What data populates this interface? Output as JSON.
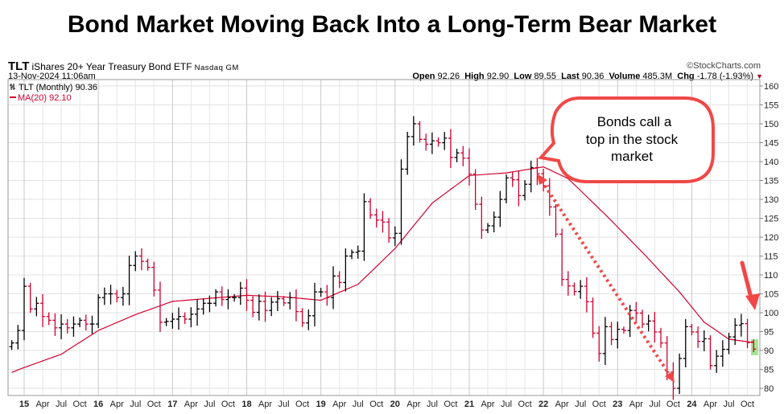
{
  "title": "Bond Market Moving Back Into a Long-Term Bear Market",
  "header": {
    "symbol": "TLT",
    "name": "iShares 20+ Year Treasury Bond ETF",
    "exchange": "Nasdaq GM",
    "date": "13-Nov-2024 11:06am",
    "copyright": "©StockCharts.com",
    "open_label": "Open",
    "open": "92.26",
    "high_label": "High",
    "high": "92.90",
    "low_label": "Low",
    "low": "89.55",
    "last_label": "Last",
    "last": "90.36",
    "volume_label": "Volume",
    "volume": "485.3M",
    "chg_label": "Chg",
    "chg": "-1.78 (-1.93%)"
  },
  "legend": {
    "price": "TLT (Monthly) 90.36",
    "ma": "MA(20) 92.10"
  },
  "annotation": {
    "lines": [
      "Bonds call a",
      "top in the stock",
      "market"
    ]
  },
  "colors": {
    "up": "#000000",
    "down": "#d0002e",
    "ma": "#d0002e",
    "annotation": "#f04848",
    "highlight": "#8fe07a"
  },
  "chart_data": {
    "type": "bar",
    "subtype": "ohlc",
    "frequency": "monthly",
    "start": "2014-11",
    "closes": [
      92,
      95.3,
      107,
      101,
      102.5,
      99,
      98,
      96,
      97,
      96,
      97,
      98,
      97,
      97,
      104,
      105,
      105,
      104,
      105,
      112.5,
      115,
      113.6,
      112,
      106,
      97.5,
      97.7,
      98.3,
      99,
      98.3,
      99.6,
      101,
      102.5,
      102.5,
      105.5,
      103.5,
      104,
      104,
      106.5,
      103.3,
      100.1,
      103,
      100.6,
      102.8,
      103.7,
      102.6,
      104,
      100.3,
      97.3,
      99.2,
      105.5,
      105.5,
      104,
      109.7,
      108,
      115,
      116,
      116.3,
      129.4,
      125.9,
      124.5,
      124,
      119.8,
      121,
      138,
      146.6,
      150,
      145.9,
      144.6,
      145.5,
      145,
      146.2,
      141.1,
      142.3,
      140.9,
      136.7,
      128.7,
      121.9,
      123,
      125.3,
      130,
      135.7,
      135.2,
      131,
      134,
      138.4,
      136.8,
      133.6,
      128,
      120.8,
      108.8,
      107.1,
      105.6,
      107,
      102.9,
      94.6,
      89.2,
      96.3,
      92.9,
      95.6,
      95.3,
      100.6,
      99.9,
      97,
      97.8,
      94.9,
      92,
      84.3,
      80,
      87.9,
      96.3,
      94.9,
      92.4,
      93.1,
      86,
      88.5,
      90.3,
      93.6,
      96.7,
      97.1,
      92.1,
      90.36
    ],
    "last_bar": {
      "open": 92.26,
      "high": 92.9,
      "low": 89.55,
      "close": 90.36
    },
    "ma20_anchors": [
      [
        0,
        84.2
      ],
      [
        2,
        85.5
      ],
      [
        8,
        89
      ],
      [
        14,
        95.3
      ],
      [
        20,
        99.5
      ],
      [
        26,
        103
      ],
      [
        32,
        103.8
      ],
      [
        38,
        104.6
      ],
      [
        44,
        104.2
      ],
      [
        50,
        103.3
      ],
      [
        56,
        107.5
      ],
      [
        62,
        117
      ],
      [
        68,
        129
      ],
      [
        74,
        136.3
      ],
      [
        80,
        137
      ],
      [
        86,
        138.6
      ],
      [
        90,
        135.5
      ],
      [
        96,
        126
      ],
      [
        102,
        116
      ],
      [
        108,
        105.5
      ],
      [
        112,
        97.5
      ],
      [
        116,
        93
      ],
      [
        120,
        92.1
      ]
    ],
    "ylim": [
      78.5,
      161
    ],
    "yticks": [
      80,
      85,
      90,
      95,
      100,
      105,
      110,
      115,
      120,
      125,
      130,
      135,
      140,
      145,
      150,
      155,
      160
    ],
    "xticks": [
      "15",
      "Apr",
      "Jul",
      "Oct",
      "16",
      "Apr",
      "Jul",
      "Oct",
      "17",
      "Apr",
      "Jul",
      "Oct",
      "18",
      "Apr",
      "Jul",
      "Oct",
      "19",
      "Apr",
      "Jul",
      "Oct",
      "20",
      "Apr",
      "Jul",
      "Oct",
      "21",
      "Apr",
      "Jul",
      "Oct",
      "22",
      "Apr",
      "Jul",
      "Oct",
      "23",
      "Apr",
      "Jul",
      "Oct",
      "24",
      "Apr",
      "Jul",
      "Oct"
    ],
    "series": [
      {
        "name": "TLT (Monthly)"
      },
      {
        "name": "MA(20)"
      }
    ]
  }
}
